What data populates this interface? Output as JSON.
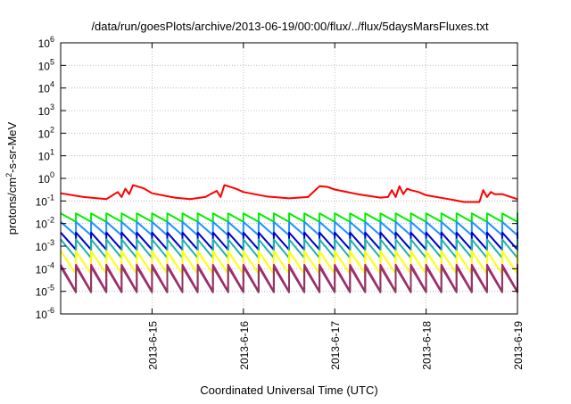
{
  "chart_data": {
    "type": "line",
    "title": "/data/run/goesPlots/archive/2013-06-19/00:00/flux/../flux/5daysMarsFluxes.txt",
    "xlabel": "Coordinated Universal Time (UTC)",
    "ylabel": {
      "pre": "protons/cm",
      "sup": "2",
      "post": "-s-sr-MeV"
    },
    "y_scale": "log",
    "ylim": [
      1e-06,
      1000000.0
    ],
    "y_ticks": [
      {
        "base": "10",
        "exp": "-6",
        "value": 1e-06
      },
      {
        "base": "10",
        "exp": "-5",
        "value": 1e-05
      },
      {
        "base": "10",
        "exp": "-4",
        "value": 0.0001
      },
      {
        "base": "10",
        "exp": "-3",
        "value": 0.001
      },
      {
        "base": "10",
        "exp": "-2",
        "value": 0.01
      },
      {
        "base": "10",
        "exp": "-1",
        "value": 0.1
      },
      {
        "base": "10",
        "exp": "0",
        "value": 1
      },
      {
        "base": "10",
        "exp": "1",
        "value": 10
      },
      {
        "base": "10",
        "exp": "2",
        "value": 100
      },
      {
        "base": "10",
        "exp": "3",
        "value": 1000
      },
      {
        "base": "10",
        "exp": "4",
        "value": 10000
      },
      {
        "base": "10",
        "exp": "5",
        "value": 100000
      },
      {
        "base": "10",
        "exp": "6",
        "value": 1000000
      }
    ],
    "xlim": [
      "2013-06-14T00:00",
      "2013-06-19T00:00"
    ],
    "x_ticks": [
      "2013-6-15",
      "2013-6-16",
      "2013-6-17",
      "2013-6-18",
      "2013-6-19"
    ],
    "grid": true,
    "series": [
      {
        "color": "#ff0000",
        "x": [
          "2013-06-14T00:00",
          "2013-06-14T06:00",
          "2013-06-14T12:00",
          "2013-06-14T15:00",
          "2013-06-14T16:00",
          "2013-06-14T17:00",
          "2013-06-14T18:00",
          "2013-06-14T19:00",
          "2013-06-14T20:00",
          "2013-06-14T21:00",
          "2013-06-14T22:00",
          "2013-06-15T00:00",
          "2013-06-15T06:00",
          "2013-06-15T10:00",
          "2013-06-15T14:00",
          "2013-06-15T17:00",
          "2013-06-15T18:00",
          "2013-06-15T19:00",
          "2013-06-15T20:00",
          "2013-06-15T22:00",
          "2013-06-16T00:00",
          "2013-06-16T06:00",
          "2013-06-16T12:00",
          "2013-06-16T17:00",
          "2013-06-16T20:00",
          "2013-06-16T22:00",
          "2013-06-17T00:00",
          "2013-06-17T06:00",
          "2013-06-17T12:00",
          "2013-06-17T14:00",
          "2013-06-17T15:00",
          "2013-06-17T16:00",
          "2013-06-17T17:00",
          "2013-06-17T18:00",
          "2013-06-17T19:00",
          "2013-06-17T20:00",
          "2013-06-17T22:00",
          "2013-06-18T00:00",
          "2013-06-18T06:00",
          "2013-06-18T10:00",
          "2013-06-18T14:00",
          "2013-06-18T15:00",
          "2013-06-18T16:00",
          "2013-06-18T17:00",
          "2013-06-18T18:00",
          "2013-06-18T20:00",
          "2013-06-19T00:00"
        ],
        "y": [
          0.22,
          0.15,
          0.12,
          0.25,
          0.15,
          0.35,
          0.2,
          0.5,
          0.45,
          0.4,
          0.35,
          0.22,
          0.14,
          0.12,
          0.15,
          0.28,
          0.15,
          0.5,
          0.45,
          0.35,
          0.25,
          0.16,
          0.13,
          0.15,
          0.45,
          0.42,
          0.32,
          0.2,
          0.14,
          0.15,
          0.3,
          0.15,
          0.45,
          0.2,
          0.35,
          0.3,
          0.25,
          0.18,
          0.12,
          0.09,
          0.09,
          0.3,
          0.15,
          0.25,
          0.2,
          0.2,
          0.12
        ]
      },
      {
        "color": "#00ee00",
        "period_h": 4,
        "min": 0.012,
        "max": 0.028
      },
      {
        "color": "#1e90ff",
        "period_h": 4,
        "min": 0.003,
        "max": 0.012
      },
      {
        "color": "#0000cd",
        "period_h": 4,
        "min": 0.0007,
        "max": 0.004
      },
      {
        "color": "#20b2aa",
        "period_h": 4,
        "min": 0.0003,
        "max": 0.002
      },
      {
        "color": "#ffff00",
        "period_h": 4,
        "min": 6e-05,
        "max": 0.0006
      },
      {
        "color": "#c71585",
        "period_h": 4,
        "min": 1e-05,
        "max": 0.00015
      },
      {
        "color": "#8b3a62",
        "period_h": 4,
        "min": 9e-06,
        "max": 0.00012
      }
    ]
  }
}
